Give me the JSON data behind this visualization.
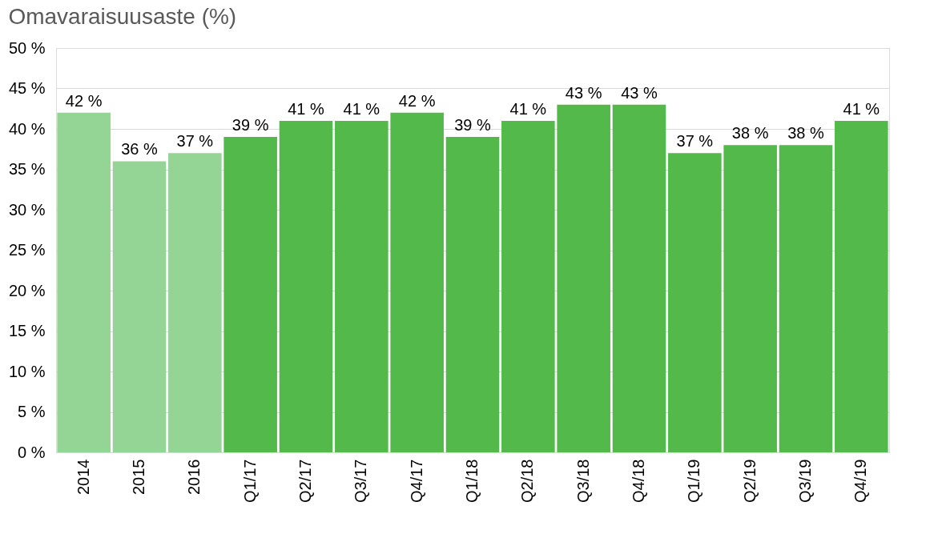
{
  "chart_data": {
    "type": "bar",
    "title": "Omavaraisuusaste (%)",
    "categories": [
      "2014",
      "2015",
      "2016",
      "Q1/17",
      "Q2/17",
      "Q3/17",
      "Q4/17",
      "Q1/18",
      "Q2/18",
      "Q3/18",
      "Q4/18",
      "Q1/19",
      "Q2/19",
      "Q3/19",
      "Q4/19"
    ],
    "values": [
      42,
      36,
      37,
      39,
      41,
      41,
      42,
      39,
      41,
      43,
      43,
      37,
      38,
      38,
      41
    ],
    "colors": [
      "#94d494",
      "#94d494",
      "#94d494",
      "#53b94a",
      "#53b94a",
      "#53b94a",
      "#53b94a",
      "#53b94a",
      "#53b94a",
      "#53b94a",
      "#53b94a",
      "#53b94a",
      "#53b94a",
      "#53b94a",
      "#53b94a"
    ],
    "value_labels": [
      "42 %",
      "36 %",
      "37 %",
      "39 %",
      "41 %",
      "41 %",
      "42 %",
      "39 %",
      "41 %",
      "43 %",
      "43 %",
      "37 %",
      "38 %",
      "38 %",
      "41 %"
    ],
    "ylim": [
      0,
      50
    ],
    "yticks": [
      {
        "value": 0,
        "label": "0 %"
      },
      {
        "value": 5,
        "label": "5 %"
      },
      {
        "value": 10,
        "label": "10 %"
      },
      {
        "value": 15,
        "label": "15 %"
      },
      {
        "value": 20,
        "label": "20 %"
      },
      {
        "value": 25,
        "label": "25 %"
      },
      {
        "value": 30,
        "label": "30 %"
      },
      {
        "value": 35,
        "label": "35 %"
      },
      {
        "value": 40,
        "label": "40 %"
      },
      {
        "value": 45,
        "label": "45 %"
      },
      {
        "value": 50,
        "label": "50 %"
      }
    ],
    "grid": "y"
  }
}
